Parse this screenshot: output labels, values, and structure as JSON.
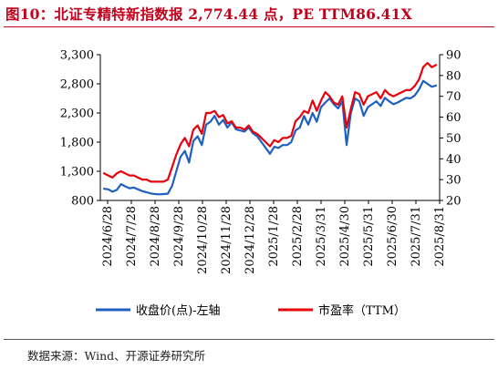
{
  "title": "图10：北证专精特新指数报 2,774.44 点，PE TTM86.41X",
  "source": "数据来源：Wind、开源证券研究所",
  "chart_data": {
    "type": "line",
    "grid": false,
    "legend_position": "bottom",
    "x_tick_labels": [
      "2024/6/28",
      "2024/7/28",
      "2024/8/28",
      "2024/9/28",
      "2024/10/28",
      "2024/11/28",
      "2024/12/28",
      "2025/1/28",
      "2025/2/28",
      "2025/3/31",
      "2025/4/30",
      "2025/5/31",
      "2025/6/30",
      "2025/7/31",
      "2025/8/31"
    ],
    "y_left": {
      "ticks": [
        "3,300",
        "2,800",
        "2,300",
        "1,800",
        "1,300",
        "800"
      ],
      "range": [
        800,
        3300
      ]
    },
    "y_right": {
      "ticks": [
        "90",
        "80",
        "70",
        "60",
        "50",
        "40",
        "30",
        "20"
      ],
      "range": [
        20,
        90
      ]
    },
    "series": [
      {
        "name": "收盘价(点)-左轴",
        "color": "#1f5fbf",
        "axis": "left",
        "values": [
          1000,
          990,
          950,
          980,
          1080,
          1040,
          1010,
          1020,
          990,
          960,
          940,
          920,
          910,
          905,
          910,
          915,
          1050,
          1300,
          1550,
          1650,
          1450,
          1820,
          1900,
          1750,
          2100,
          2150,
          2250,
          2100,
          2180,
          2050,
          2140,
          2020,
          2000,
          1980,
          2050,
          1950,
          1900,
          1800,
          1700,
          1600,
          1720,
          1700,
          1750,
          1750,
          1800,
          2000,
          2050,
          2250,
          2100,
          2300,
          2150,
          2400,
          2480,
          2550,
          2450,
          2380,
          2500,
          1750,
          2300,
          2550,
          2500,
          2250,
          2400,
          2450,
          2500,
          2420,
          2560,
          2500,
          2450,
          2480,
          2520,
          2560,
          2550,
          2600,
          2700,
          2850,
          2800,
          2750,
          2770
        ]
      },
      {
        "name": "市盈率（TTM）",
        "color": "#e8000b",
        "axis": "right",
        "values": [
          33,
          32,
          31,
          33,
          34,
          33,
          32,
          32,
          31,
          30,
          30,
          29,
          29,
          29,
          29,
          30,
          36,
          42,
          47,
          50,
          46,
          54,
          56,
          52,
          62,
          62,
          63,
          60,
          61,
          57,
          58,
          55,
          55,
          54,
          56,
          53,
          52,
          50,
          48,
          46,
          49,
          48,
          50,
          50,
          51,
          58,
          60,
          63,
          62,
          68,
          63,
          68,
          72,
          70,
          67,
          66,
          70,
          55,
          64,
          72,
          71,
          66,
          70,
          71,
          72,
          69,
          73,
          71,
          70,
          71,
          72,
          73,
          73,
          75,
          78,
          84,
          86,
          84,
          85
        ]
      }
    ]
  }
}
